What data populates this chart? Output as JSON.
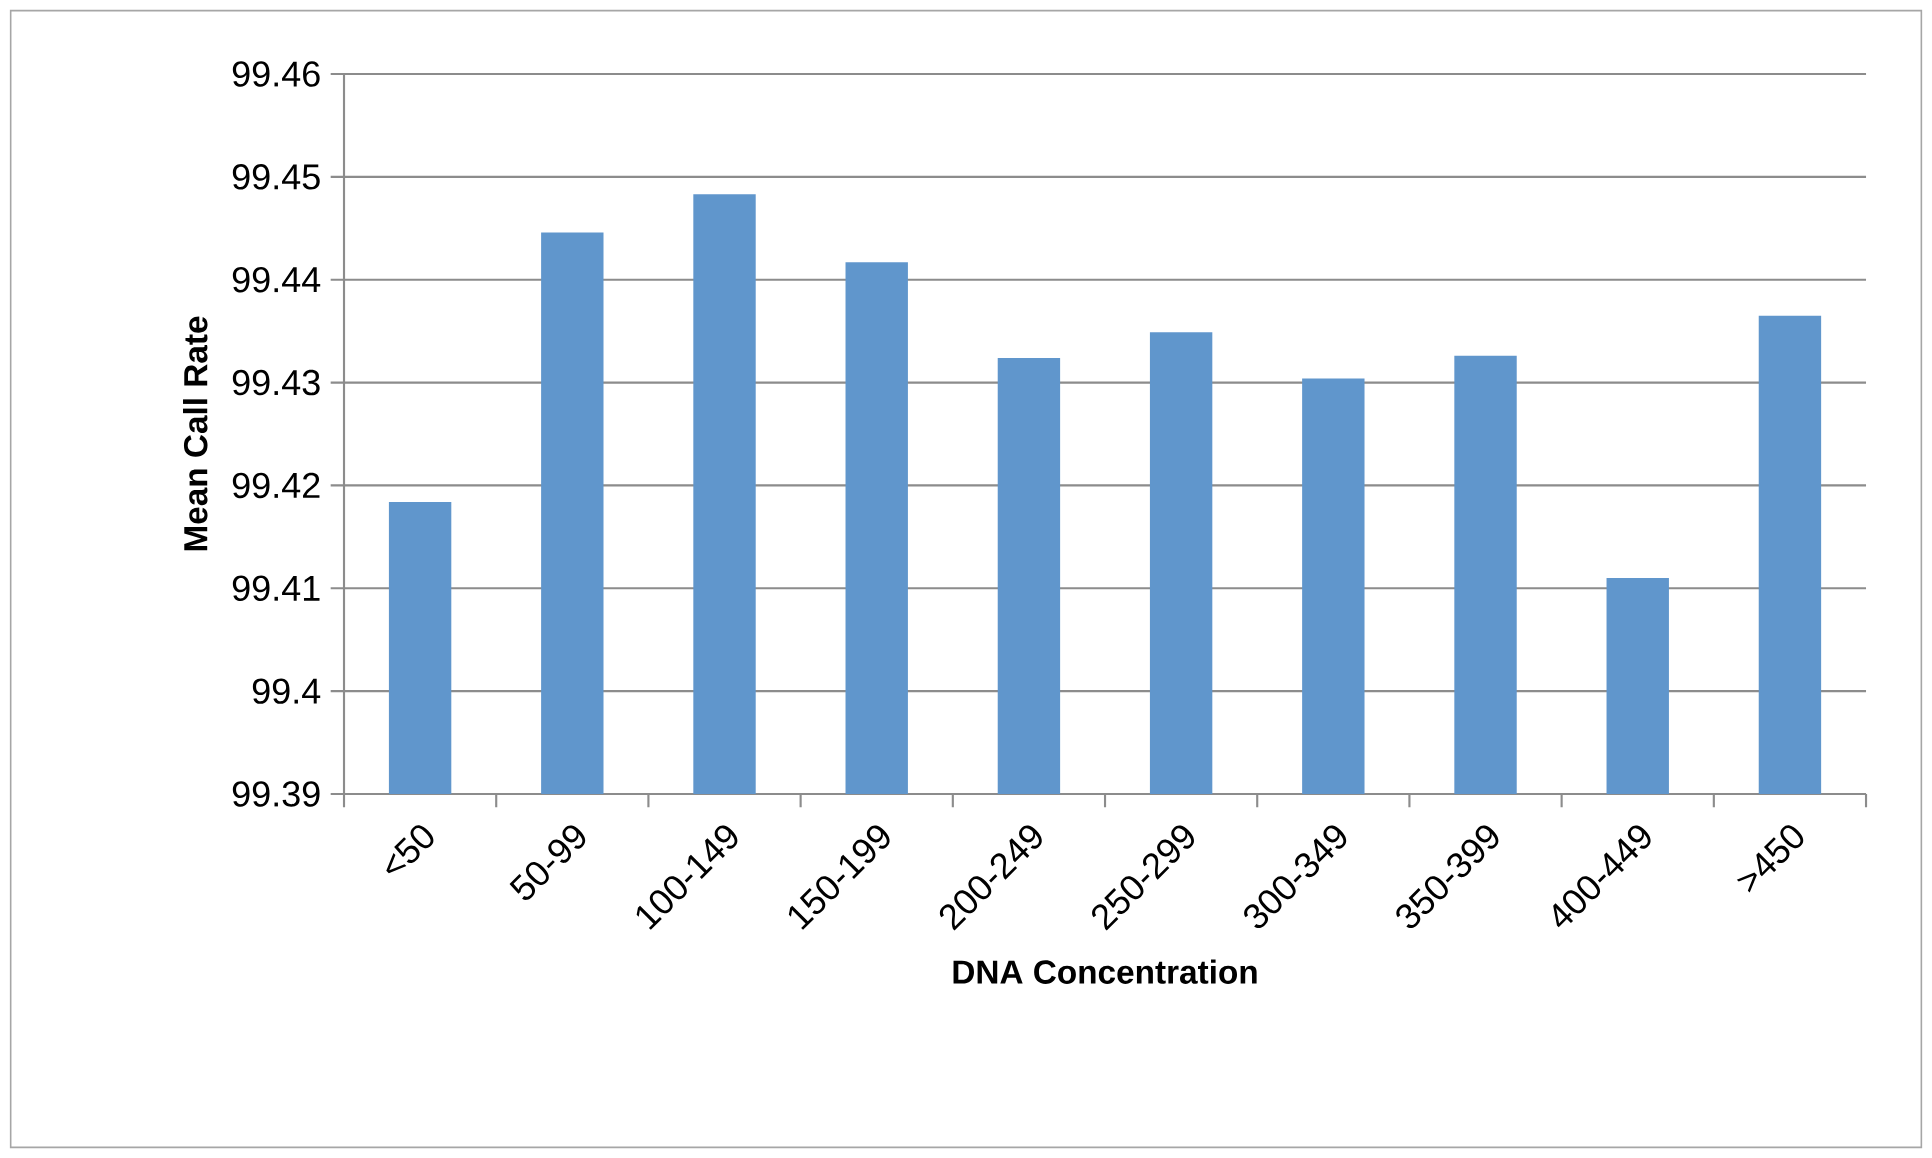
{
  "chart_data": {
    "type": "bar",
    "xlabel": "DNA Concentration",
    "ylabel": "Mean Call Rate",
    "categories": [
      "<50",
      "50-99",
      "100-149",
      "150-199",
      "200-249",
      "250-299",
      "300-349",
      "350-399",
      "400-449",
      ">450"
    ],
    "values": [
      99.4184,
      99.4446,
      99.4483,
      99.4417,
      99.4324,
      99.4349,
      99.4304,
      99.4326,
      99.411,
      99.4365
    ],
    "color": "#6096cc",
    "ylim": [
      99.39,
      99.46
    ],
    "yticks": [
      99.39,
      99.4,
      99.41,
      99.42,
      99.43,
      99.44,
      99.45,
      99.46
    ],
    "grid": "y"
  }
}
